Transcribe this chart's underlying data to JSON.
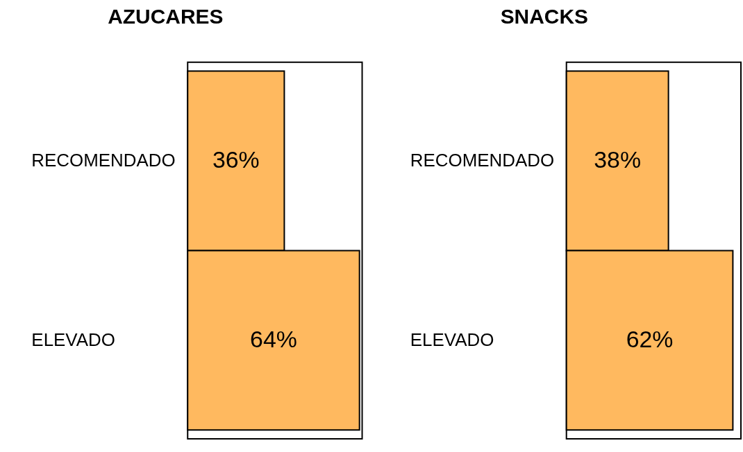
{
  "chart_data": [
    {
      "type": "bar",
      "orientation": "horizontal",
      "title": "AZUCARES",
      "categories": [
        "RECOMENDADO",
        "ELEVADO"
      ],
      "values": [
        36,
        64
      ],
      "value_labels": [
        "36%",
        "64%"
      ],
      "color": "#ffb95f",
      "tick_labels": "y"
    },
    {
      "type": "bar",
      "orientation": "horizontal",
      "title": "SNACKS",
      "categories": [
        "RECOMENDADO",
        "ELEVADO"
      ],
      "values": [
        38,
        62
      ],
      "value_labels": [
        "38%",
        "62%"
      ],
      "color": "#ffb95f",
      "tick_labels": "y"
    }
  ]
}
